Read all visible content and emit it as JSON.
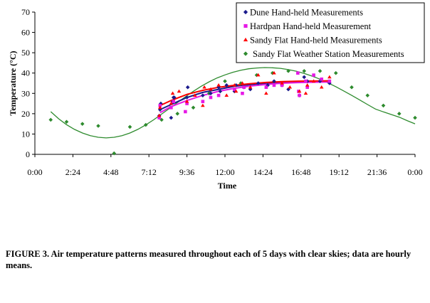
{
  "chart_data": {
    "type": "scatter",
    "xlabel": "Time",
    "ylabel": "Temperature (°C)",
    "xlim": [
      0,
      24
    ],
    "ylim": [
      0,
      70
    ],
    "x_tick_labels": [
      "0:00",
      "2:24",
      "4:48",
      "7:12",
      "9:36",
      "12:00",
      "14:24",
      "16:48",
      "19:12",
      "21:36",
      "0:00"
    ],
    "y_tick_labels": [
      "0",
      "10",
      "20",
      "30",
      "40",
      "50",
      "60",
      "70"
    ],
    "grid": false,
    "legend_position": "top-right",
    "series": [
      {
        "name": "Dune  Hand-held Measurements",
        "color": "#1a1a8c",
        "marker": "diamond",
        "x": [
          7.85,
          7.9,
          7.95,
          8.6,
          8.7,
          8.75,
          8.8,
          9.6,
          9.65,
          10.6,
          11.1,
          11.6,
          11.7,
          12.1,
          12.6,
          12.7,
          13.2,
          13.6,
          14.1,
          14.7,
          15.1,
          15.6,
          16.0,
          16.7,
          17.0,
          17.2,
          18.0,
          18.6
        ],
        "y": [
          19,
          22,
          25,
          18,
          26,
          28,
          28,
          28,
          33,
          29,
          30,
          33,
          31,
          34,
          31,
          34,
          33,
          32,
          35,
          34,
          36,
          34,
          32,
          29,
          38,
          36,
          36,
          35
        ],
        "trend": {
          "x": [
            7.9,
            8.6,
            9.6,
            10.6,
            11.6,
            12.6,
            13.6,
            14.6,
            15.6,
            16.6,
            17.6,
            18.6
          ],
          "y": [
            22.0,
            24.5,
            28.0,
            30.5,
            32.0,
            33.5,
            34.3,
            35.0,
            35.5,
            35.8,
            36.0,
            36.1
          ]
        }
      },
      {
        "name": "Hardpan  Hand-held Measurement",
        "color": "#e619e6",
        "marker": "square",
        "x": [
          7.85,
          7.9,
          8.6,
          8.75,
          9.5,
          9.6,
          10.6,
          11.1,
          11.6,
          12.6,
          13.1,
          13.2,
          14.6,
          15.1,
          15.6,
          16.6,
          16.65,
          16.7,
          17.1,
          17.2,
          17.6,
          18.1,
          18.6
        ],
        "y": [
          18,
          24,
          23,
          26,
          21,
          25,
          26,
          28,
          29,
          32,
          30,
          33,
          33,
          34,
          34,
          40,
          31,
          29,
          36,
          33,
          39,
          37,
          36
        ],
        "trend": {
          "x": [
            7.9,
            8.6,
            9.6,
            10.6,
            11.6,
            12.6,
            13.6,
            14.6,
            15.6,
            16.6,
            17.6,
            18.6
          ],
          "y": [
            20.5,
            23.5,
            26.5,
            29.0,
            31.0,
            32.5,
            33.6,
            34.4,
            35.0,
            35.3,
            35.5,
            35.6
          ]
        }
      },
      {
        "name": "Sandy Flat  Hand-held Measurements",
        "color": "#ff0000",
        "marker": "triangle",
        "x": [
          7.85,
          7.9,
          8.6,
          8.7,
          9.1,
          9.6,
          10.1,
          10.6,
          10.7,
          11.1,
          11.6,
          12.1,
          12.6,
          12.7,
          13.1,
          13.6,
          14.1,
          14.6,
          15.1,
          15.6,
          16.1,
          16.7,
          17.1,
          17.2,
          17.6,
          18.1,
          18.6
        ],
        "y": [
          19,
          23,
          25,
          30,
          31,
          26,
          29,
          24,
          33,
          32,
          34,
          29,
          34,
          31,
          35,
          33,
          39,
          30,
          40,
          35,
          33,
          31,
          30,
          34,
          36,
          33,
          38
        ],
        "trend": {
          "x": [
            7.9,
            8.6,
            9.6,
            10.6,
            11.6,
            12.6,
            13.6,
            14.6,
            15.6,
            16.6,
            17.6,
            18.6
          ],
          "y": [
            24.0,
            26.5,
            29.5,
            31.5,
            33.0,
            34.0,
            34.8,
            35.4,
            35.8,
            36.0,
            36.1,
            36.2
          ]
        }
      },
      {
        "name": "Sandy Flat Weather Station Measurements",
        "color": "#2e8b2e",
        "marker": "diamond",
        "x": [
          1.0,
          2.0,
          3.0,
          4.0,
          5.0,
          6.0,
          7.0,
          8.0,
          9.0,
          10.0,
          11.0,
          12.0,
          13.0,
          14.0,
          15.0,
          16.0,
          17.0,
          18.0,
          19.0,
          20.0,
          21.0,
          22.0,
          23.0,
          24.0
        ],
        "y": [
          17,
          16,
          15,
          14,
          0.5,
          13.5,
          14.5,
          17,
          20,
          23,
          30,
          36,
          35,
          39,
          40,
          41,
          41,
          41,
          40,
          33,
          29,
          24,
          20,
          18
        ],
        "trend": {
          "x": [
            1.0,
            1.5,
            2.0,
            2.5,
            3.0,
            3.5,
            4.0,
            4.5,
            5.0,
            5.5,
            6.0,
            6.5,
            7.0,
            7.5,
            8.0,
            8.5,
            9.0,
            9.5,
            10.0,
            10.5,
            11.0,
            11.5,
            12.0,
            12.5,
            13.0,
            13.5,
            14.0,
            14.5,
            15.0,
            15.5,
            16.0,
            16.5,
            17.0,
            17.5,
            18.0,
            18.5,
            19.0,
            19.5,
            20.0,
            20.5,
            21.0,
            21.5,
            22.0,
            22.5,
            23.0,
            23.5,
            24.0
          ],
          "y": [
            21.0,
            17.5,
            14.6,
            12.3,
            10.5,
            9.2,
            8.4,
            8.1,
            8.4,
            9.2,
            10.5,
            12.3,
            14.5,
            17.0,
            19.8,
            22.6,
            25.5,
            28.3,
            31.0,
            33.5,
            35.7,
            37.6,
            39.1,
            40.4,
            41.4,
            42.1,
            42.5,
            42.7,
            42.6,
            42.3,
            41.7,
            40.9,
            39.8,
            38.5,
            37.0,
            35.2,
            33.3,
            31.2,
            29.0,
            26.8,
            24.5,
            22.3,
            20.9,
            19.6,
            18.3,
            16.6,
            15.0
          ]
        }
      }
    ]
  },
  "caption": "FIGURE 3.  Air temperature patterns measured throughout each of 5 days with clear skies; data are hourly means."
}
